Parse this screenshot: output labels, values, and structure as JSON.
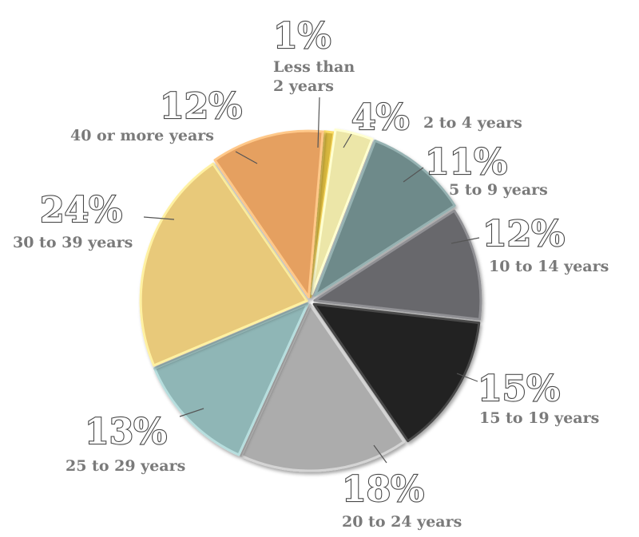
{
  "chart_data": {
    "type": "pie",
    "categories": [
      "Less than 2 years",
      "2 to 4 years",
      "5 to 9 years",
      "10 to 14 years",
      "15 to 19 years",
      "20 to 24 years",
      "25 to 29 years",
      "30 to 39 years",
      "40 or more years"
    ],
    "values": [
      1,
      4,
      11,
      12,
      15,
      18,
      13,
      24,
      12
    ],
    "value_labels": [
      "1%",
      "4%",
      "11%",
      "12%",
      "15%",
      "18%",
      "13%",
      "24%",
      "12%"
    ],
    "category_label_lines": [
      [
        "Less than",
        "2 years"
      ],
      [
        "2 to 4 years"
      ],
      [
        "5 to 9 years"
      ],
      [
        "10 to 14 years"
      ],
      [
        "15 to 19 years"
      ],
      [
        "20 to 24 years"
      ],
      [
        "25 to 29 years"
      ],
      [
        "30 to 39 years"
      ],
      [
        "40 or more years"
      ]
    ],
    "colors": [
      "#d6b63e",
      "#ece6a8",
      "#6e8a8a",
      "#68686c",
      "#222222",
      "#acacac",
      "#8fb6b6",
      "#e8c97a",
      "#e5a061"
    ],
    "title": "",
    "legend": "none"
  }
}
